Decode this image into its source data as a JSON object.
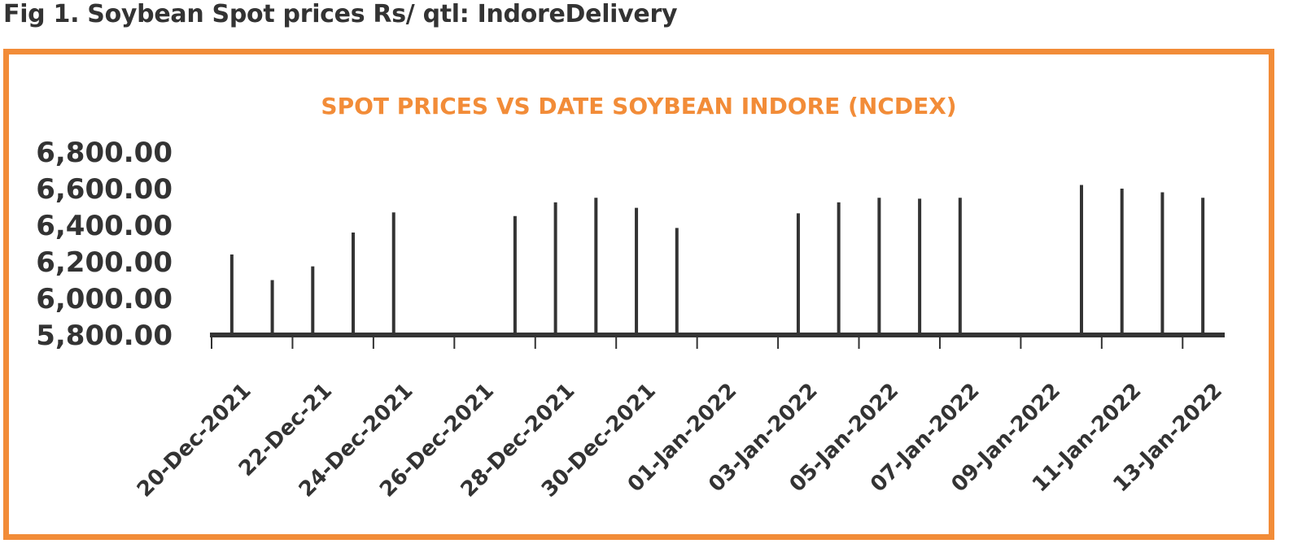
{
  "figure": {
    "caption": "Fig 1. Soybean Spot prices Rs/ qtl: IndoreDelivery"
  },
  "colors": {
    "frame": "#F28C38",
    "title": "#F28C38",
    "bars": "#333333",
    "text": "#333333"
  },
  "chart_data": {
    "type": "bar",
    "title": "SPOT PRICES VS DATE SOYBEAN INDORE (NCDEX)",
    "xlabel": "",
    "ylabel": "",
    "ylim": [
      5800,
      6800
    ],
    "yticks": [
      "6,800.00",
      "6,600.00",
      "6,400.00",
      "6,200.00",
      "6,000.00",
      "5,800.00"
    ],
    "x_axis": "date",
    "xlim": [
      "2021-12-20",
      "2022-01-14"
    ],
    "xtick_labels": [
      "20-Dec-2021",
      "22-Dec-21",
      "24-Dec-2021",
      "26-Dec-2021",
      "28-Dec-2021",
      "30-Dec-2021",
      "01-Jan-2022",
      "03-Jan-2022",
      "05-Jan-2022",
      "07-Jan-2022",
      "09-Jan-2022",
      "11-Jan-2022",
      "13-Jan-2022"
    ],
    "dates": [
      "2021-12-20",
      "2021-12-21",
      "2021-12-22",
      "2021-12-23",
      "2021-12-24",
      "2021-12-27",
      "2021-12-28",
      "2021-12-29",
      "2021-12-30",
      "2021-12-31",
      "2022-01-03",
      "2022-01-04",
      "2022-01-05",
      "2022-01-06",
      "2022-01-07",
      "2022-01-10",
      "2022-01-11",
      "2022-01-12",
      "2022-01-13"
    ],
    "values": [
      6240,
      6100,
      6175,
      6360,
      6470,
      6450,
      6525,
      6550,
      6495,
      6385,
      6465,
      6525,
      6550,
      6545,
      6550,
      6620,
      6600,
      6580,
      6550
    ],
    "grid": false,
    "legend": "none"
  }
}
